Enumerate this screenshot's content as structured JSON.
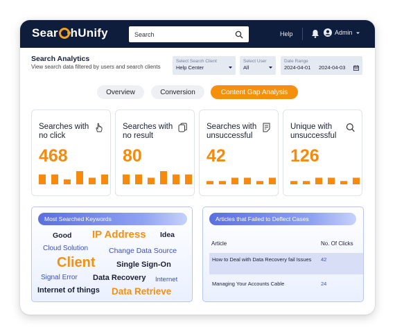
{
  "app": {
    "logo_text_pre": "Sear",
    "logo_text_post": "hUnify",
    "brand_color": "#f5a21a",
    "nav_color": "#0f1d3d"
  },
  "header": {
    "search_placeholder": "Search",
    "help_label": "Help",
    "user_label": "Admin",
    "icons": [
      "search-icon",
      "bell-icon",
      "user-avatar-icon",
      "chevron-down-icon"
    ]
  },
  "page": {
    "title": "Search Analytics",
    "subtitle": "View search data filtered by users and search clients"
  },
  "filters": {
    "client": {
      "label": "Select Search Client",
      "value": "Help Center"
    },
    "user": {
      "label": "Select User",
      "value": "All"
    },
    "date": {
      "label": "Date Range",
      "start": "2024-04-01",
      "end": "2024-04-03"
    }
  },
  "tabs": [
    {
      "label": "Overview",
      "active": false
    },
    {
      "label": "Conversion",
      "active": false
    },
    {
      "label": "Content Gap Analysis",
      "active": true
    }
  ],
  "cards": [
    {
      "title": "Searches with no click",
      "value": "468",
      "icon": "pointer-click-icon",
      "bars": [
        3,
        3,
        1.5,
        4,
        2,
        3
      ]
    },
    {
      "title": "Searches with no result",
      "value": "80",
      "icon": "copy-pages-icon",
      "bars": [
        3,
        3,
        2,
        4,
        3,
        3
      ]
    },
    {
      "title": "Searches with unsuccessful",
      "value": "42",
      "icon": "document-lines-icon",
      "bars": [
        1,
        1,
        2,
        2,
        1,
        2
      ]
    },
    {
      "title": "Unique with unsuccessful",
      "value": "126",
      "icon": "search-icon",
      "bars": [
        1,
        1,
        2,
        2,
        1,
        2
      ]
    }
  ],
  "keywords": {
    "title": "Most Searched Keywords",
    "items": [
      {
        "text": "Good",
        "color": "#1a1f33"
      },
      {
        "text": "IP Address",
        "color": "#f5900f"
      },
      {
        "text": "Idea",
        "color": "#1a1f33"
      },
      {
        "text": "Cloud Solution",
        "color": "#3b4fb8"
      },
      {
        "text": "Change Data Source",
        "color": "#3b4fb8"
      },
      {
        "text": "Client",
        "color": "#f5900f"
      },
      {
        "text": "Single Sign-On",
        "color": "#1a1f33"
      },
      {
        "text": "Signal Error",
        "color": "#3b4fb8"
      },
      {
        "text": "Data Recovery",
        "color": "#1a1f33"
      },
      {
        "text": "Internet",
        "color": "#3b4fb8"
      },
      {
        "text": "Internet of things",
        "color": "#1a1f33"
      },
      {
        "text": "Data Retrieve",
        "color": "#f5900f"
      }
    ]
  },
  "articles": {
    "title": "Articles that Failed to Deflect Cases",
    "col_article": "Article",
    "col_clicks": "No. Of Clicks",
    "rows": [
      {
        "article": "How to Deal with Data Recovery fail Issues",
        "clicks": "42"
      },
      {
        "article": "Managing Your Accounts Cable",
        "clicks": "24"
      }
    ]
  }
}
